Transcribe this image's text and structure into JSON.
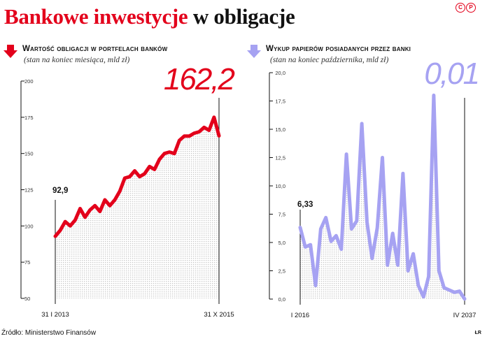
{
  "title": {
    "part1": "Bankowe inwestycje",
    "part2": "w obligacje"
  },
  "logo": {
    "c": "C",
    "p": "P"
  },
  "source": "Źródło: Ministerstwo Finansów",
  "initials": "ŁR",
  "colors": {
    "red": "#e3001b",
    "purple": "#a6a2f2",
    "gridDot": "#c8c8c8"
  },
  "chart_data": [
    {
      "type": "line",
      "title": "Wartość obligacji w portfelach banków",
      "subtitle": "(stan na koniec miesiąca, mld zł)",
      "big_label": "162,2",
      "start_label": "92,9",
      "x_tick_labels": [
        "31 I 2013",
        "31 X 2015"
      ],
      "y_ticks": [
        50,
        75,
        100,
        125,
        150,
        175,
        200
      ],
      "y_tick_labels": [
        "50",
        "75",
        "100",
        "125",
        "150",
        "175",
        "200"
      ],
      "ylim": [
        50,
        200
      ],
      "color": "#e3001b",
      "series": [
        {
          "values": [
            92.9,
            97,
            103,
            100,
            104,
            112,
            106,
            111,
            114,
            110,
            118,
            114,
            118,
            124,
            133,
            134,
            138,
            134,
            136,
            141,
            139,
            146,
            150,
            151,
            150,
            159,
            162,
            162,
            164,
            165,
            168,
            166,
            175,
            162.2
          ]
        }
      ]
    },
    {
      "type": "line",
      "title": "Wykup papierów posiadanych przez banki",
      "subtitle": "(stan na koniec października, mld zł)",
      "big_label": "0,01",
      "start_label": "6,33",
      "x_tick_labels": [
        "I 2016",
        "IV 2037"
      ],
      "y_ticks": [
        0,
        2.5,
        5,
        7.5,
        10,
        12.5,
        15,
        17.5,
        20
      ],
      "y_tick_labels": [
        "0,0",
        "2,5",
        "5,0",
        "7,5",
        "10,0",
        "12,5",
        "15,0",
        "17,5",
        "20,0"
      ],
      "ylim": [
        0,
        20
      ],
      "color": "#a6a2f2",
      "series": [
        {
          "values": [
            6.33,
            4.6,
            4.8,
            1.2,
            6.2,
            7.2,
            5.1,
            5.6,
            4.4,
            12.8,
            6.2,
            6.9,
            15.5,
            6.8,
            3.6,
            6.3,
            12.5,
            3.0,
            5.8,
            3.0,
            11.1,
            2.5,
            4.0,
            1.2,
            0.2,
            2.0,
            18.0,
            2.5,
            1.0,
            0.8,
            0.6,
            0.7,
            0.01
          ]
        }
      ]
    }
  ]
}
